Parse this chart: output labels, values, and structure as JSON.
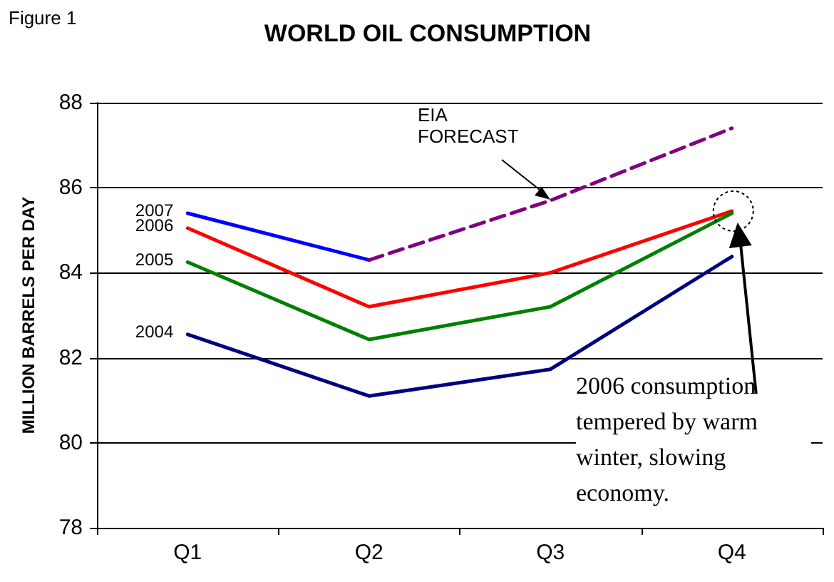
{
  "chart_data": {
    "type": "line",
    "title": "WORLD OIL CONSUMPTION",
    "ylabel": "MILLION BARRELS PER DAY",
    "categories": [
      "Q1",
      "Q2",
      "Q3",
      "Q4"
    ],
    "series": [
      {
        "name": "2007",
        "color": "#0000ff",
        "values": [
          85.4,
          84.3,
          null,
          null
        ]
      },
      {
        "name": "2006",
        "color": "#ff0000",
        "values": [
          85.05,
          83.2,
          84.0,
          85.45
        ]
      },
      {
        "name": "2005",
        "color": "#008000",
        "values": [
          84.25,
          82.43,
          83.2,
          85.4
        ]
      },
      {
        "name": "2004",
        "color": "#000080",
        "values": [
          82.55,
          81.1,
          81.73,
          84.38
        ]
      },
      {
        "color": "#800080",
        "values": [
          null,
          84.3,
          85.7,
          87.4
        ],
        "line_style": "dashed"
      }
    ],
    "ylim": [
      78,
      88
    ],
    "yticks": [
      78,
      80,
      82,
      84,
      86,
      88
    ],
    "grid": "y",
    "marker": "none",
    "line_style": "solid",
    "annotations": [
      "Figure 1",
      "EIA FORECAST",
      "2006 consumption tempered by warm winter, slowing economy."
    ]
  }
}
